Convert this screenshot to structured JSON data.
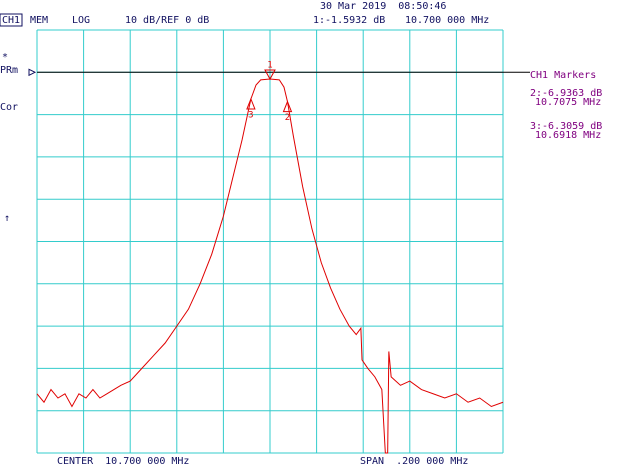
{
  "chart_data": {
    "type": "line",
    "header": {
      "channel": "CH1",
      "memory": "MEM",
      "format": "LOG",
      "scale": "10 dB/REF 0 dB",
      "timestamp": "30 Mar 2019  08:50:46"
    },
    "side_labels": [
      "*",
      "PRm",
      "Cor",
      "↑"
    ],
    "center_label": "CENTER  10.700 000 MHz",
    "span_label": "SPAN  .200 000 MHz",
    "marker_panel_title": "CH1 Markers",
    "ref_value": 0,
    "xlim": [
      10.6,
      10.8
    ],
    "ylim": [
      -90,
      10
    ],
    "xticks": [
      10.6,
      10.62,
      10.64,
      10.66,
      10.68,
      10.7,
      10.72,
      10.74,
      10.76,
      10.78,
      10.8
    ],
    "yticks": [
      10,
      0,
      -10,
      -20,
      -30,
      -40,
      -50,
      -60,
      -70,
      -80,
      -90
    ],
    "grid": true,
    "series": [
      {
        "color": "#e00000",
        "x": [
          10.6,
          10.603,
          10.606,
          10.609,
          10.612,
          10.615,
          10.618,
          10.621,
          10.624,
          10.627,
          10.63,
          10.633,
          10.636,
          10.64,
          10.645,
          10.65,
          10.655,
          10.66,
          10.665,
          10.67,
          10.675,
          10.68,
          10.684,
          10.688,
          10.6918,
          10.694,
          10.696,
          10.7,
          10.704,
          10.706,
          10.7075,
          10.71,
          10.714,
          10.718,
          10.722,
          10.726,
          10.73,
          10.734,
          10.737,
          10.739,
          10.7395,
          10.742,
          10.745,
          10.748,
          10.7495,
          10.7505,
          10.751,
          10.752,
          10.756,
          10.76,
          10.765,
          10.77,
          10.775,
          10.78,
          10.785,
          10.79,
          10.795,
          10.8
        ],
        "values": [
          -76,
          -78,
          -75,
          -77,
          -76,
          -79,
          -76,
          -77,
          -75,
          -77,
          -76,
          -75,
          -74,
          -73,
          -70,
          -67,
          -64,
          -60,
          -56,
          -50,
          -43,
          -34,
          -25,
          -16,
          -6.3059,
          -3,
          -1.8,
          -1.5932,
          -1.8,
          -3.5,
          -6.9363,
          -15,
          -27,
          -37,
          -45,
          -51,
          -56,
          -60,
          -62,
          -60.5,
          -68,
          -70,
          -72,
          -75,
          -90,
          -90,
          -66,
          -72,
          -74,
          -73,
          -75,
          -76,
          -77,
          -76,
          -78,
          -77,
          -79,
          -78
        ]
      }
    ],
    "markers": [
      {
        "label": "1",
        "freq": 10.7,
        "value": -1.5932,
        "readout": "1:-1.5932 dB",
        "freq_label": "10.700 000 MHz",
        "dir": "down"
      },
      {
        "label": "2",
        "freq": 10.7075,
        "value": -6.9363,
        "readout": "2:-6.9363 dB",
        "freq_label": "10.7075 MHz",
        "dir": "up"
      },
      {
        "label": "3",
        "freq": 10.6918,
        "value": -6.3059,
        "readout": "3:-6.3059 dB",
        "freq_label": "10.6918 MHz",
        "dir": "up"
      }
    ]
  }
}
